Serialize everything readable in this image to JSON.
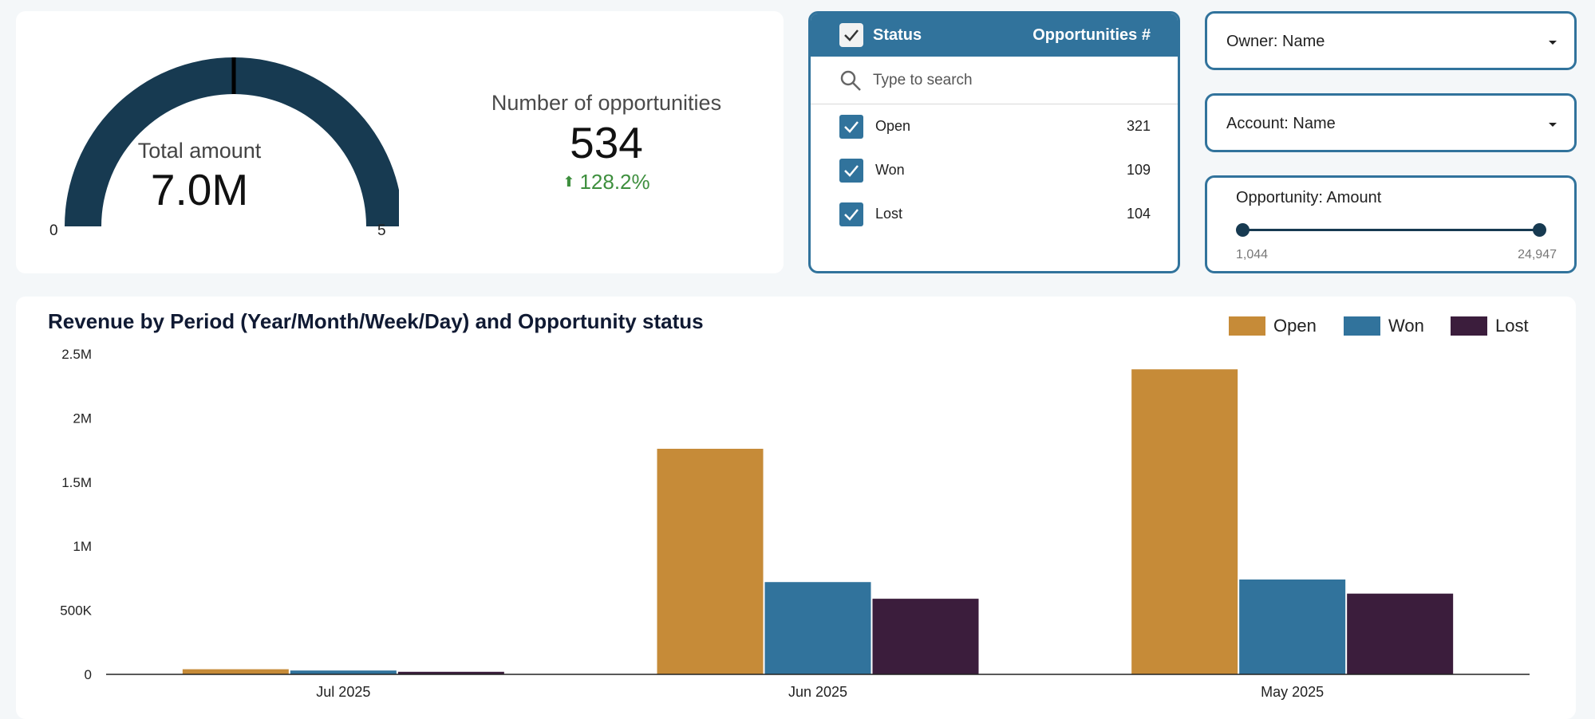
{
  "kpi": {
    "gauge": {
      "title": "Total amount",
      "value": "7.0M",
      "min_label": "0",
      "max_label": "5",
      "fill_fraction": 1.0,
      "marker_fraction": 0.5,
      "color": "#173a51"
    },
    "opportunities": {
      "title": "Number of opportunities",
      "value": "534",
      "change": "128.2%",
      "change_color": "#3e8f3e"
    }
  },
  "status_filter": {
    "header_label": "Status",
    "header_count_label": "Opportunities #",
    "search_placeholder": "Type to search",
    "items": [
      {
        "label": "Open",
        "count": "321",
        "checked": true
      },
      {
        "label": "Won",
        "count": "109",
        "checked": true
      },
      {
        "label": "Lost",
        "count": "104",
        "checked": true
      }
    ]
  },
  "filters": {
    "owner": "Owner: Name",
    "account": "Account: Name",
    "amount": {
      "title": "Opportunity: Amount",
      "min": "1,044",
      "max": "24,947"
    }
  },
  "colors": {
    "accent": "#31739c",
    "dark": "#173a51",
    "open": "#c68b38",
    "won": "#31739c",
    "lost": "#3b1d3c"
  },
  "chart_data": {
    "type": "bar",
    "title": "Revenue by Period (Year/Month/Week/Day) and Opportunity status",
    "categories": [
      "Jul 2025",
      "Jun 2025",
      "May 2025"
    ],
    "series": [
      {
        "name": "Open",
        "values": [
          40000,
          1760000,
          2380000
        ]
      },
      {
        "name": "Won",
        "values": [
          30000,
          720000,
          740000
        ]
      },
      {
        "name": "Lost",
        "values": [
          20000,
          590000,
          630000
        ]
      }
    ],
    "ylim": [
      0,
      2500000
    ],
    "yticks": [
      0,
      500000,
      1000000,
      1500000,
      2000000,
      2500000
    ],
    "ytick_labels": [
      "0",
      "500K",
      "1M",
      "1.5M",
      "2M",
      "2.5M"
    ],
    "legend_position": "top-right",
    "grid": false
  }
}
